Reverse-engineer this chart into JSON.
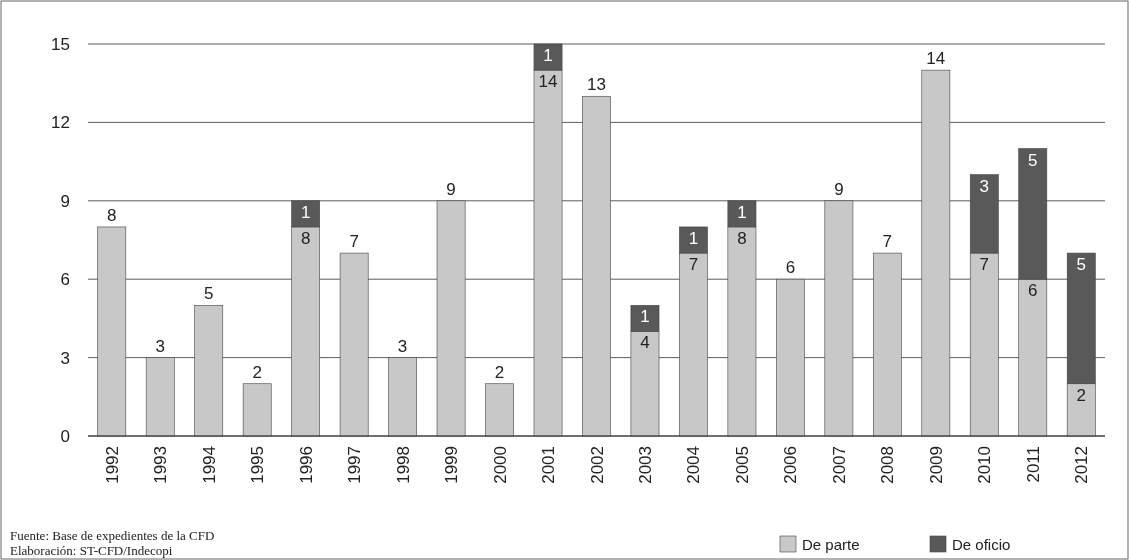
{
  "chart_data": {
    "type": "bar",
    "stacked": true,
    "categories": [
      "1992",
      "1993",
      "1994",
      "1995",
      "1996",
      "1997",
      "1998",
      "1999",
      "2000",
      "2001",
      "2002",
      "2003",
      "2004",
      "2005",
      "2006",
      "2007",
      "2008",
      "2009",
      "2010",
      "2011",
      "2012"
    ],
    "series": [
      {
        "name": "De parte",
        "color": "#c8c8c8",
        "values": [
          8,
          3,
          5,
          2,
          8,
          7,
          3,
          9,
          2,
          14,
          13,
          4,
          7,
          8,
          6,
          9,
          7,
          14,
          7,
          6,
          2
        ]
      },
      {
        "name": "De oficio",
        "color": "#595959",
        "values": [
          null,
          null,
          null,
          null,
          1,
          null,
          null,
          null,
          null,
          1,
          null,
          1,
          1,
          1,
          null,
          null,
          null,
          null,
          3,
          5,
          5
        ]
      }
    ],
    "ylim": [
      0,
      15
    ],
    "yticks": [
      0,
      3,
      6,
      9,
      12,
      15
    ],
    "grid": "y",
    "legend": "bottom right",
    "data_labels": true,
    "annotations": [
      "Fuente: Base de expedientes de la CFD",
      "Elaboración: ST-CFD/Indecopi"
    ]
  }
}
